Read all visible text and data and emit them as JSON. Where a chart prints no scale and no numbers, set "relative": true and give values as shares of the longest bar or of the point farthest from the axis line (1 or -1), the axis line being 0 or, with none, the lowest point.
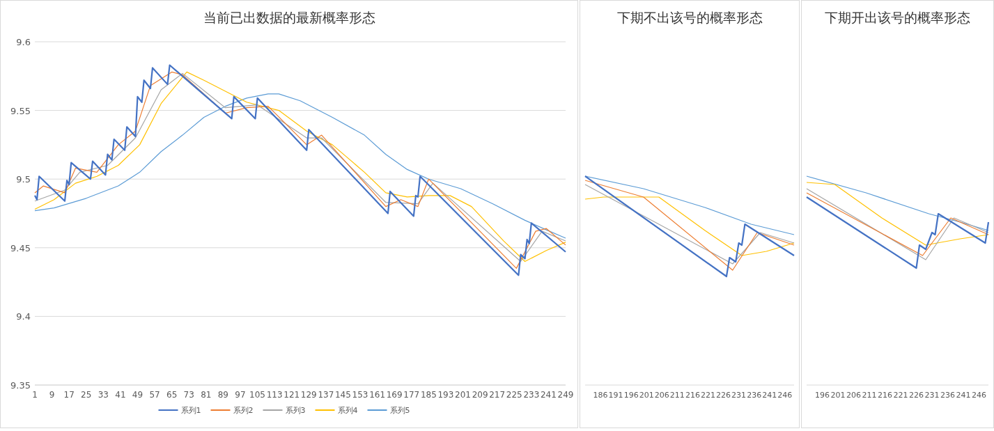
{
  "chart_data": [
    {
      "type": "line",
      "title": "当前已出数据的最新概率形态",
      "xlim": [
        1,
        249
      ],
      "xticks": [
        1,
        9,
        17,
        25,
        33,
        41,
        49,
        57,
        65,
        73,
        81,
        89,
        97,
        105,
        113,
        121,
        129,
        137,
        145,
        153,
        161,
        169,
        177,
        185,
        193,
        201,
        209,
        217,
        225,
        233,
        241,
        249
      ],
      "ylim": [
        9.35,
        9.6
      ],
      "yticks": [
        9.35,
        9.4,
        9.45,
        9.5,
        9.55,
        9.6
      ],
      "grid": "y",
      "legend": "bottom",
      "marker": "none",
      "line_style": "solid",
      "series": [
        {
          "name": "系列1",
          "color": "#4472c4",
          "x": [
            1,
            2,
            3,
            15,
            16,
            17,
            18,
            27,
            28,
            34,
            35,
            37,
            38,
            43,
            44,
            48,
            49,
            51,
            52,
            55,
            56,
            63,
            64,
            93,
            94,
            104,
            105,
            128,
            129,
            166,
            167,
            178,
            179,
            180,
            181,
            227,
            228,
            230,
            231,
            232,
            233,
            249
          ],
          "values": [
            9.488,
            9.485,
            9.502,
            9.484,
            9.499,
            9.496,
            9.512,
            9.5,
            9.513,
            9.503,
            9.518,
            9.514,
            9.529,
            9.521,
            9.538,
            9.531,
            9.56,
            9.556,
            9.572,
            9.566,
            9.581,
            9.569,
            9.583,
            9.544,
            9.56,
            9.544,
            9.559,
            9.521,
            9.536,
            9.475,
            9.491,
            9.473,
            9.488,
            9.487,
            9.502,
            9.43,
            9.445,
            9.442,
            9.456,
            9.453,
            9.468,
            9.447
          ]
        },
        {
          "name": "系列2",
          "color": "#ed7d31",
          "x": [
            1,
            5,
            15,
            20,
            30,
            40,
            48,
            55,
            65,
            70,
            90,
            100,
            110,
            128,
            135,
            165,
            172,
            180,
            185,
            226,
            235,
            240,
            249
          ],
          "values": [
            9.49,
            9.495,
            9.49,
            9.508,
            9.505,
            9.525,
            9.535,
            9.568,
            9.578,
            9.576,
            9.548,
            9.552,
            9.553,
            9.525,
            9.532,
            9.48,
            9.485,
            9.48,
            9.5,
            9.435,
            9.462,
            9.464,
            9.452
          ]
        },
        {
          "name": "系列3",
          "color": "#a5a5a5",
          "x": [
            1,
            15,
            22,
            35,
            48,
            60,
            70,
            90,
            105,
            128,
            135,
            165,
            180,
            187,
            228,
            238,
            249
          ],
          "values": [
            9.484,
            9.492,
            9.505,
            9.51,
            9.53,
            9.565,
            9.577,
            9.552,
            9.554,
            9.53,
            9.53,
            9.483,
            9.482,
            9.497,
            9.44,
            9.462,
            9.455
          ]
        },
        {
          "name": "系列4",
          "color": "#ffc000",
          "x": [
            1,
            10,
            20,
            30,
            40,
            50,
            60,
            72,
            80,
            100,
            115,
            128,
            140,
            155,
            165,
            175,
            185,
            195,
            205,
            220,
            230,
            240,
            249
          ],
          "values": [
            9.478,
            9.485,
            9.497,
            9.502,
            9.51,
            9.525,
            9.555,
            9.578,
            9.572,
            9.556,
            9.55,
            9.535,
            9.525,
            9.505,
            9.49,
            9.487,
            9.488,
            9.488,
            9.48,
            9.455,
            9.44,
            9.448,
            9.454
          ]
        },
        {
          "name": "系列5",
          "color": "#5b9bd5",
          "x": [
            1,
            10,
            25,
            40,
            50,
            60,
            70,
            80,
            90,
            100,
            110,
            115,
            125,
            140,
            155,
            165,
            175,
            185,
            200,
            215,
            230,
            240,
            249
          ],
          "values": [
            9.477,
            9.479,
            9.486,
            9.495,
            9.505,
            9.52,
            9.532,
            9.545,
            9.553,
            9.559,
            9.562,
            9.562,
            9.557,
            9.545,
            9.532,
            9.518,
            9.507,
            9.5,
            9.493,
            9.482,
            9.47,
            9.463,
            9.457
          ]
        }
      ]
    },
    {
      "type": "line",
      "title": "下期不出该号的概率形态",
      "relative": true,
      "xlim": [
        181,
        249
      ],
      "xticks": [
        186,
        191,
        196,
        201,
        206,
        211,
        216,
        221,
        226,
        231,
        236,
        241,
        246
      ],
      "marker": "none",
      "line_style": "solid",
      "series": [
        {
          "color": "#4472c4",
          "x": [
            181,
            227,
            228,
            230,
            231,
            232,
            233,
            249
          ],
          "values": [
            1.0,
            0.52,
            0.61,
            0.59,
            0.68,
            0.67,
            0.77,
            0.62
          ]
        },
        {
          "color": "#ed7d31",
          "x": [
            181,
            200,
            229,
            237,
            249
          ],
          "values": [
            0.98,
            0.9,
            0.55,
            0.73,
            0.67
          ]
        },
        {
          "color": "#a5a5a5",
          "x": [
            181,
            229,
            238,
            249
          ],
          "values": [
            0.96,
            0.58,
            0.73,
            0.68
          ]
        },
        {
          "color": "#ffc000",
          "x": [
            181,
            187,
            205,
            220,
            232,
            240,
            249
          ],
          "values": [
            0.89,
            0.9,
            0.9,
            0.74,
            0.62,
            0.64,
            0.68
          ]
        },
        {
          "color": "#5b9bd5",
          "x": [
            181,
            200,
            220,
            235,
            249
          ],
          "values": [
            1.0,
            0.94,
            0.85,
            0.77,
            0.72
          ]
        }
      ]
    },
    {
      "type": "line",
      "title": "下期开出该号的概率形态",
      "relative": true,
      "xlim": [
        191,
        249
      ],
      "xticks": [
        196,
        201,
        206,
        211,
        216,
        221,
        226,
        231,
        236,
        241,
        246
      ],
      "marker": "none",
      "line_style": "solid",
      "series": [
        {
          "color": "#4472c4",
          "x": [
            191,
            226,
            227,
            229,
            231,
            232,
            233,
            248,
            249
          ],
          "values": [
            0.9,
            0.56,
            0.67,
            0.65,
            0.73,
            0.72,
            0.82,
            0.68,
            0.78
          ]
        },
        {
          "color": "#ed7d31",
          "x": [
            191,
            228,
            237,
            249
          ],
          "values": [
            0.92,
            0.62,
            0.8,
            0.72
          ]
        },
        {
          "color": "#a5a5a5",
          "x": [
            191,
            229,
            238,
            249
          ],
          "values": [
            0.94,
            0.6,
            0.8,
            0.73
          ]
        },
        {
          "color": "#ffc000",
          "x": [
            191,
            200,
            215,
            229,
            240,
            249
          ],
          "values": [
            0.97,
            0.96,
            0.8,
            0.67,
            0.7,
            0.72
          ]
        },
        {
          "color": "#5b9bd5",
          "x": [
            191,
            210,
            230,
            240,
            249
          ],
          "values": [
            1.0,
            0.92,
            0.82,
            0.78,
            0.74
          ]
        }
      ]
    }
  ]
}
